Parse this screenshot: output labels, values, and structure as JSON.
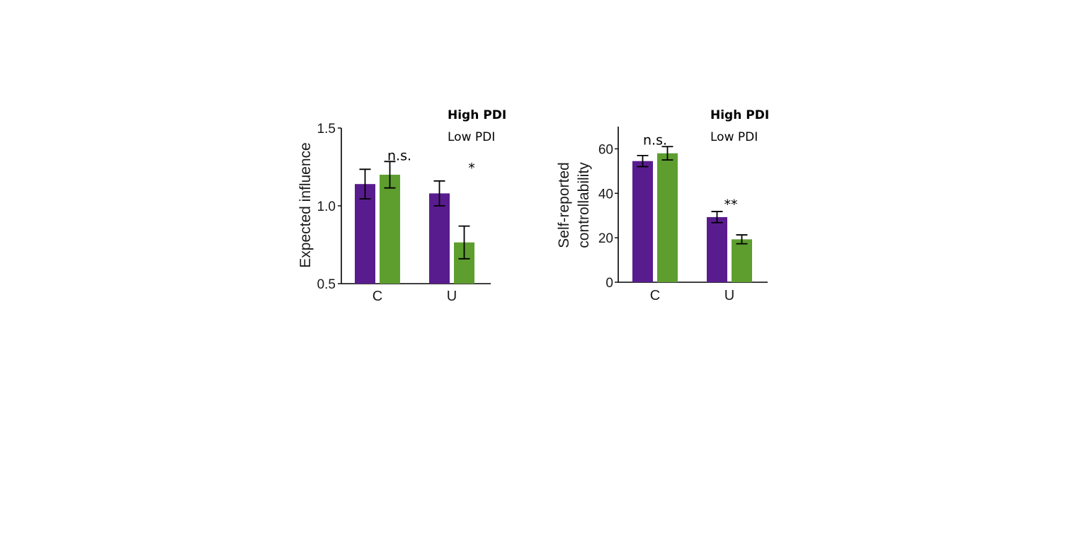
{
  "chart_data": [
    {
      "type": "bar",
      "ylabel": "Expected influence",
      "categories": [
        "C",
        "U"
      ],
      "ylim": [
        0.5,
        1.5
      ],
      "yticks": [
        "0.5",
        "1.0",
        "1.5"
      ],
      "yticks_values": [
        0.5,
        1.0,
        1.5
      ],
      "legend": [
        "High PDI",
        "Low PDI"
      ],
      "legend_position": "top-right",
      "series": [
        {
          "name": "High PDI",
          "color": "#591c8f",
          "values": [
            1.14,
            1.08
          ],
          "errors": [
            0.095,
            0.08
          ]
        },
        {
          "name": "Low PDI",
          "color": "#5e9e2f",
          "values": [
            1.2,
            0.765
          ],
          "errors": [
            0.085,
            0.105
          ]
        }
      ],
      "annotations": [
        {
          "text": "n.s.",
          "category": 0,
          "value": 1.33
        },
        {
          "text": "*",
          "category": 1,
          "value": 1.25
        }
      ],
      "grid": false
    },
    {
      "type": "bar",
      "ylabel": "Self-reported controllability",
      "ylabel_lines": [
        "Self-reported",
        "controllability"
      ],
      "categories": [
        "C",
        "U"
      ],
      "ylim": [
        0,
        70
      ],
      "yticks": [
        "0",
        "20",
        "40",
        "60"
      ],
      "yticks_values": [
        0,
        20,
        40,
        60
      ],
      "legend": [
        "High PDI",
        "Low PDI"
      ],
      "legend_position": "top-right",
      "series": [
        {
          "name": "High PDI",
          "color": "#591c8f",
          "values": [
            54.5,
            29.3
          ],
          "errors": [
            2.5,
            2.5
          ]
        },
        {
          "name": "Low PDI",
          "color": "#5e9e2f",
          "values": [
            58.0,
            19.3
          ],
          "errors": [
            3.0,
            2.0
          ]
        }
      ],
      "annotations": [
        {
          "text": "n.s.",
          "category": 0,
          "value": 64.5
        },
        {
          "text": "**",
          "category": 1,
          "value": 35.5
        }
      ],
      "grid": false
    }
  ]
}
